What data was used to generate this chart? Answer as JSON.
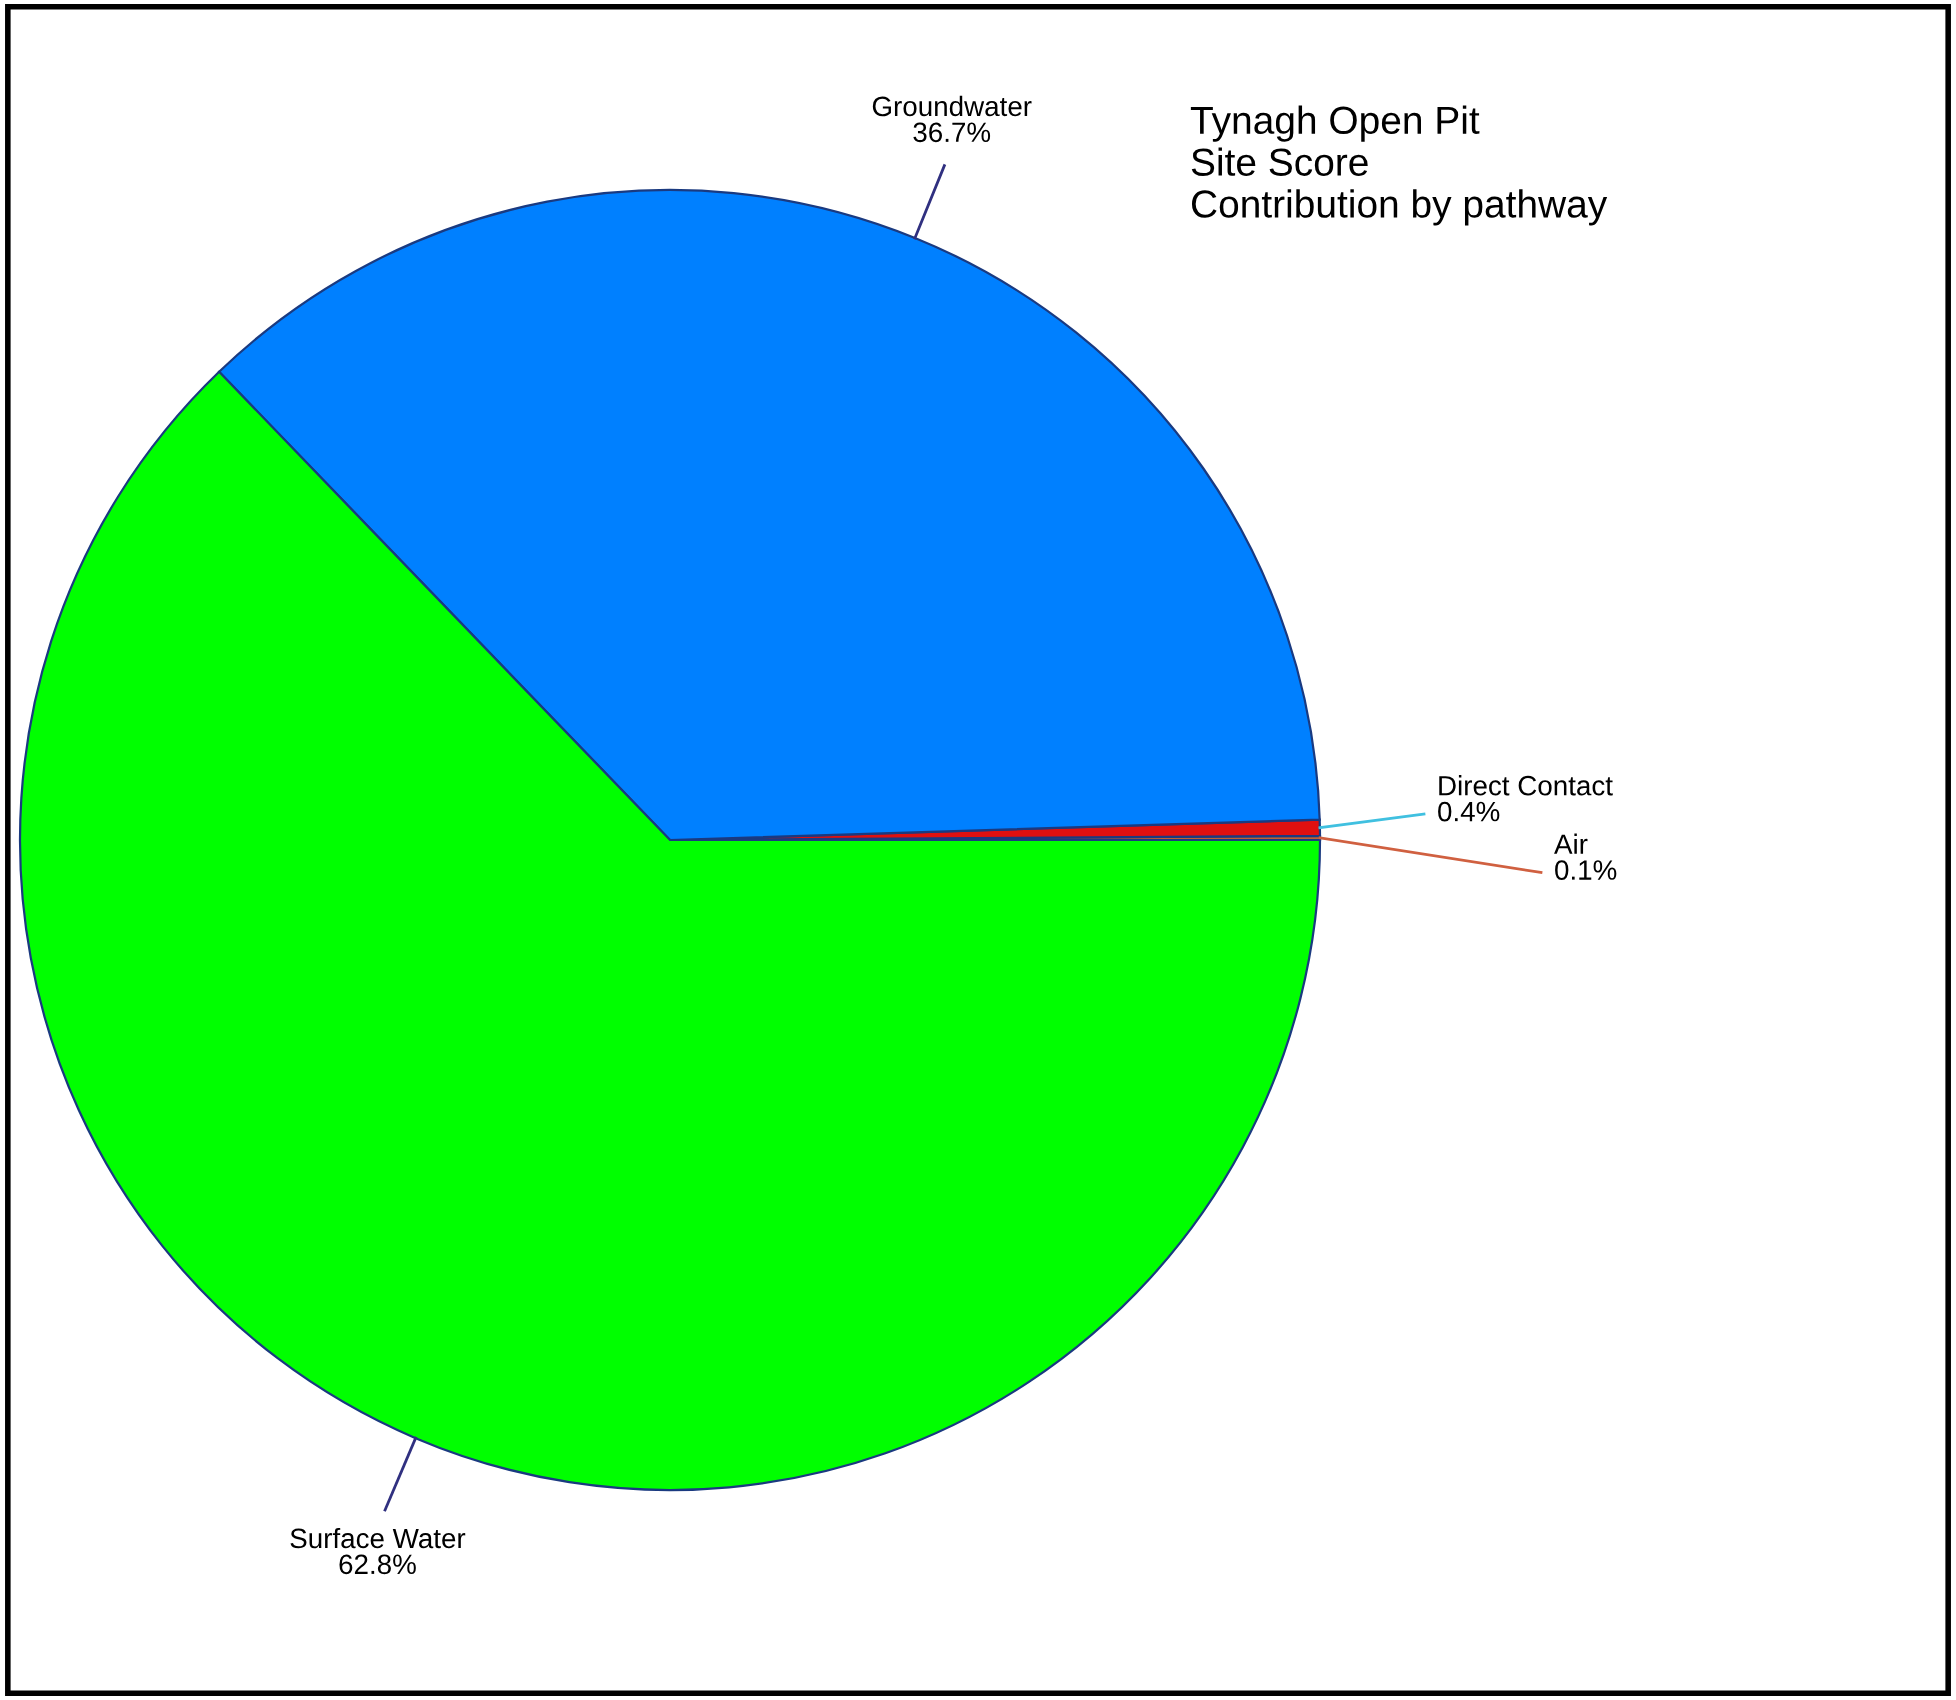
{
  "chart_data": {
    "type": "pie",
    "title": "Tynagh Open Pit\nSite Score\nContribution by pathway",
    "categories": [
      "Air",
      "Direct Contact",
      "Groundwater",
      "Surface Water"
    ],
    "values": [
      0.1,
      0.4,
      36.7,
      62.8
    ],
    "value_labels": [
      "0.1%",
      "0.4%",
      "36.7%",
      "62.8%"
    ],
    "colors": [
      "#c06030",
      "#e01010",
      "#0080ff",
      "#00ff00"
    ]
  }
}
